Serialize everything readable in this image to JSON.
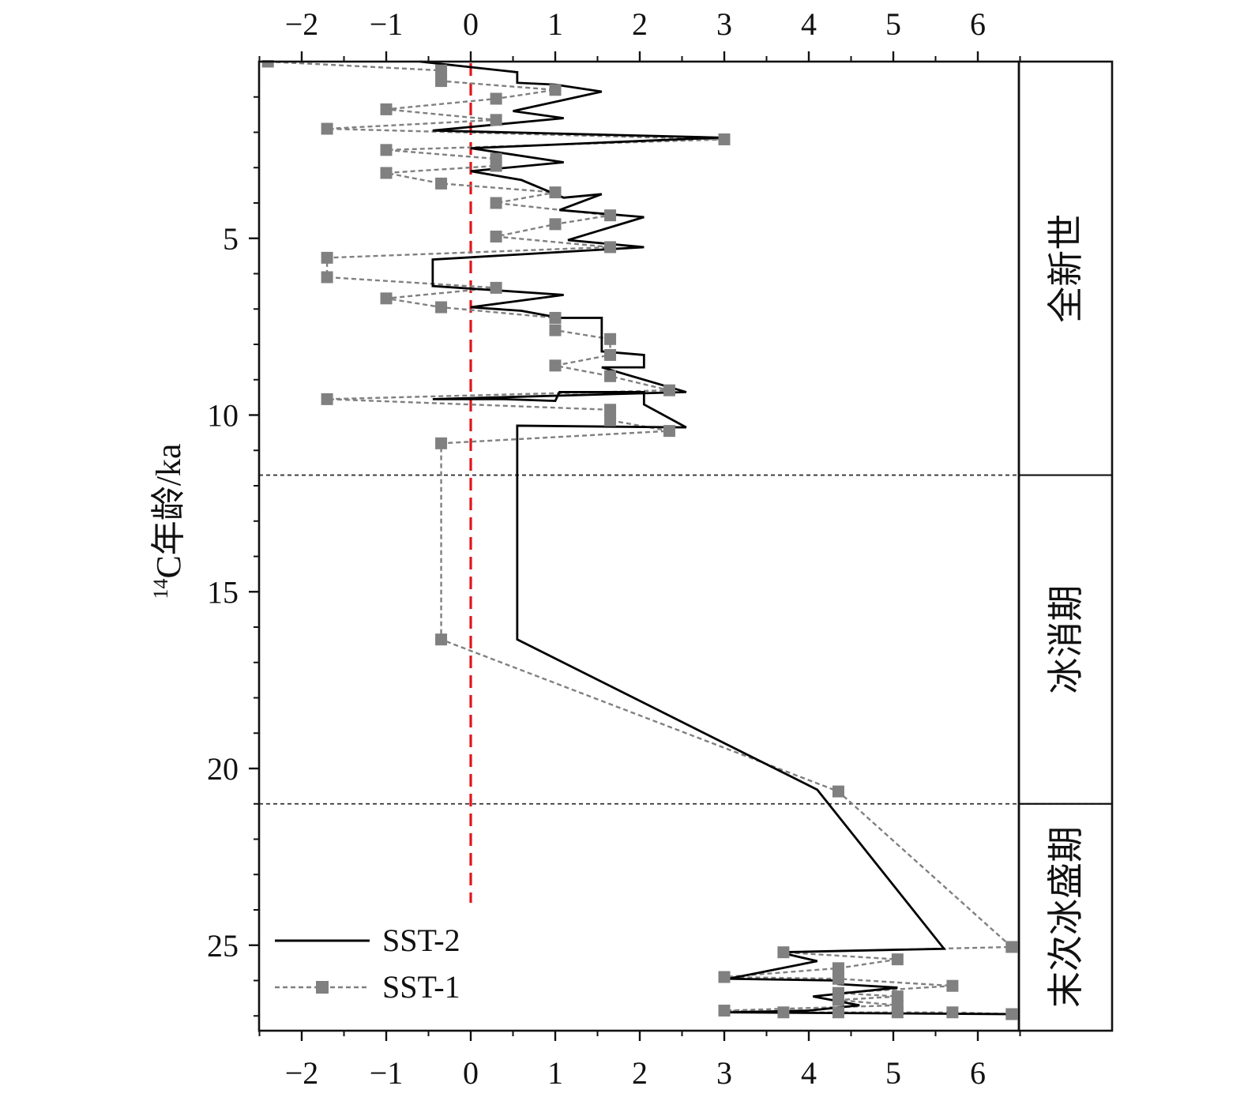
{
  "chart_data": {
    "type": "line",
    "title": "",
    "xlabel": "",
    "ylabel": "¹⁴C年龄/ka",
    "ylabel_parts": {
      "superscript": "14",
      "main": "C年龄/ka"
    },
    "xlim": [
      -2.5,
      6.5
    ],
    "ylim": [
      0,
      27.4
    ],
    "y_reversed": true,
    "x_axis_positions": [
      "top",
      "bottom"
    ],
    "xticks": [
      -2,
      -1,
      0,
      1,
      2,
      3,
      4,
      5,
      6
    ],
    "xtick_labels": [
      "−2",
      "−1",
      "0",
      "1",
      "2",
      "3",
      "4",
      "5",
      "6"
    ],
    "yticks": [
      5,
      10,
      15,
      20,
      25
    ],
    "ytick_labels": [
      "5",
      "10",
      "15",
      "20",
      "25"
    ],
    "grid": false,
    "legend": {
      "position": "bottom-left",
      "entries": [
        "SST-2",
        "SST-1"
      ]
    },
    "reference_line": {
      "x": 0,
      "style": "dashed",
      "color": "#e3141b"
    },
    "period_boundaries": [
      11.7,
      21.0
    ],
    "periods": [
      {
        "label": "全新世",
        "from": 0,
        "to": 11.7
      },
      {
        "label": "冰消期",
        "from": 11.7,
        "to": 21.0
      },
      {
        "label": "末次冰盛期",
        "from": 21.0,
        "to": 27.4
      }
    ],
    "colors": {
      "sst2": "#000000",
      "sst1": "#808080",
      "zero_line": "#e3141b",
      "boundary": "#333333"
    },
    "series": [
      {
        "name": "SST-2",
        "style": "solid",
        "points": [
          [
            -0.6,
            0.0
          ],
          [
            0.55,
            0.3
          ],
          [
            0.55,
            0.6
          ],
          [
            1.0,
            0.65
          ],
          [
            1.55,
            0.85
          ],
          [
            0.5,
            1.4
          ],
          [
            1.1,
            1.6
          ],
          [
            -0.45,
            1.95
          ],
          [
            2.95,
            2.15
          ],
          [
            0.0,
            2.45
          ],
          [
            1.1,
            2.85
          ],
          [
            0.0,
            3.1
          ],
          [
            0.6,
            3.35
          ],
          [
            1.1,
            3.85
          ],
          [
            1.55,
            3.75
          ],
          [
            1.05,
            4.2
          ],
          [
            2.05,
            4.4
          ],
          [
            1.15,
            5.05
          ],
          [
            2.05,
            5.25
          ],
          [
            -0.45,
            5.6
          ],
          [
            -0.45,
            6.35
          ],
          [
            1.1,
            6.6
          ],
          [
            0.0,
            6.95
          ],
          [
            0.6,
            7.05
          ],
          [
            1.05,
            7.25
          ],
          [
            1.55,
            7.25
          ],
          [
            1.55,
            8.2
          ],
          [
            2.05,
            8.3
          ],
          [
            2.05,
            8.65
          ],
          [
            1.55,
            8.65
          ],
          [
            2.55,
            9.35
          ],
          [
            -0.45,
            9.55
          ],
          [
            0.4,
            9.55
          ],
          [
            1.0,
            9.6
          ],
          [
            1.05,
            9.35
          ],
          [
            2.05,
            9.35
          ],
          [
            2.05,
            9.7
          ],
          [
            2.55,
            10.35
          ],
          [
            0.55,
            10.3
          ],
          [
            0.55,
            16.35
          ],
          [
            4.1,
            20.6
          ],
          [
            5.6,
            25.1
          ],
          [
            3.65,
            25.2
          ],
          [
            4.1,
            25.45
          ],
          [
            3.05,
            25.95
          ],
          [
            4.35,
            26.0
          ],
          [
            4.35,
            26.1
          ],
          [
            5.05,
            26.2
          ],
          [
            4.05,
            26.45
          ],
          [
            4.6,
            26.7
          ],
          [
            4.0,
            26.85
          ],
          [
            3.05,
            26.9
          ],
          [
            6.4,
            26.95
          ]
        ]
      },
      {
        "name": "SST-1",
        "style": "dashed",
        "marker": "square",
        "points": [
          [
            -2.4,
            0.0
          ],
          [
            -0.35,
            0.25
          ],
          [
            -0.35,
            0.55
          ],
          [
            1.0,
            0.8
          ],
          [
            0.3,
            1.05
          ],
          [
            -1.0,
            1.35
          ],
          [
            0.3,
            1.65
          ],
          [
            -1.7,
            1.9
          ],
          [
            3.0,
            2.2
          ],
          [
            -1.0,
            2.5
          ],
          [
            0.3,
            2.75
          ],
          [
            0.3,
            2.95
          ],
          [
            -1.0,
            3.15
          ],
          [
            -0.35,
            3.45
          ],
          [
            1.0,
            3.7
          ],
          [
            0.3,
            4.0
          ],
          [
            1.65,
            4.35
          ],
          [
            1.0,
            4.6
          ],
          [
            0.3,
            4.95
          ],
          [
            1.65,
            5.25
          ],
          [
            -1.7,
            5.55
          ],
          [
            -1.7,
            6.1
          ],
          [
            0.3,
            6.4
          ],
          [
            -1.0,
            6.7
          ],
          [
            -0.35,
            6.95
          ],
          [
            1.0,
            7.25
          ],
          [
            1.0,
            7.6
          ],
          [
            1.65,
            7.85
          ],
          [
            1.65,
            8.3
          ],
          [
            1.0,
            8.6
          ],
          [
            1.65,
            8.9
          ],
          [
            2.35,
            9.3
          ],
          [
            -1.7,
            9.55
          ],
          [
            1.65,
            9.85
          ],
          [
            1.65,
            10.15
          ],
          [
            2.35,
            10.45
          ],
          [
            -0.35,
            10.8
          ],
          [
            -0.35,
            16.35
          ],
          [
            4.35,
            20.65
          ],
          [
            6.4,
            25.05
          ],
          [
            3.7,
            25.2
          ],
          [
            5.05,
            25.4
          ],
          [
            4.35,
            25.65
          ],
          [
            3.0,
            25.9
          ],
          [
            4.35,
            25.95
          ],
          [
            5.7,
            26.15
          ],
          [
            4.35,
            26.35
          ],
          [
            5.05,
            26.45
          ],
          [
            4.35,
            26.55
          ],
          [
            5.05,
            26.7
          ],
          [
            3.0,
            26.85
          ],
          [
            3.7,
            26.9
          ],
          [
            4.35,
            26.9
          ],
          [
            5.05,
            26.9
          ],
          [
            5.7,
            26.9
          ],
          [
            6.4,
            26.95
          ]
        ]
      }
    ]
  }
}
